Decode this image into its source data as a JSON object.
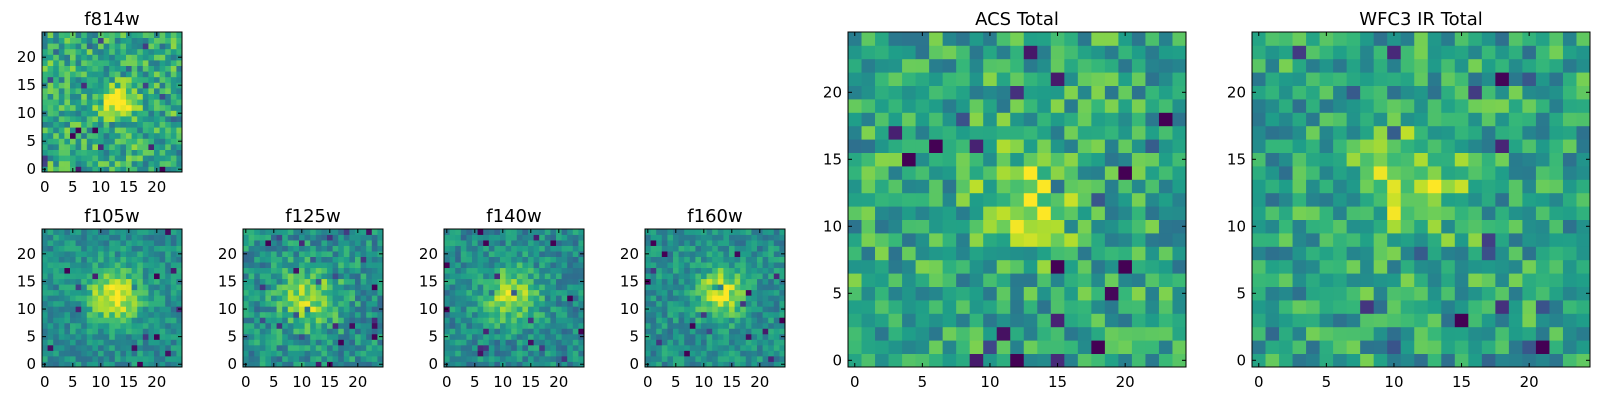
{
  "chart_data": [
    {
      "type": "heatmap",
      "title": "f814w",
      "xlabel": "",
      "ylabel": "",
      "grid_size": [
        25,
        25
      ],
      "xlim": [
        -0.5,
        24.5
      ],
      "ylim": [
        -0.5,
        24.5
      ],
      "xticks": [
        0,
        5,
        10,
        15,
        20
      ],
      "yticks": [
        0,
        5,
        10,
        15,
        20
      ],
      "colormap": "viridis",
      "source": {
        "center": [
          13,
          12
        ],
        "sigma": 1.8,
        "amplitude": 0.55,
        "base": 0.62,
        "noise": 0.22,
        "seed": 101
      }
    },
    {
      "type": "heatmap",
      "title": "f105w",
      "xlabel": "",
      "ylabel": "",
      "grid_size": [
        25,
        25
      ],
      "xlim": [
        -0.5,
        24.5
      ],
      "ylim": [
        -0.5,
        24.5
      ],
      "xticks": [
        0,
        5,
        10,
        15,
        20
      ],
      "yticks": [
        0,
        5,
        10,
        15,
        20
      ],
      "colormap": "viridis",
      "source": {
        "center": [
          12.5,
          12.5
        ],
        "sigma": 3.2,
        "amplitude": 0.5,
        "base": 0.5,
        "noise": 0.14,
        "seed": 202
      }
    },
    {
      "type": "heatmap",
      "title": "f125w",
      "xlabel": "",
      "ylabel": "",
      "grid_size": [
        25,
        25
      ],
      "xlim": [
        -0.5,
        24.5
      ],
      "ylim": [
        -0.5,
        24.5
      ],
      "xticks": [
        0,
        5,
        10,
        15,
        20
      ],
      "yticks": [
        0,
        5,
        10,
        15,
        20
      ],
      "colormap": "viridis",
      "source": {
        "center": [
          11.5,
          12
        ],
        "sigma": 3.8,
        "amplitude": 0.35,
        "base": 0.5,
        "noise": 0.18,
        "seed": 303
      }
    },
    {
      "type": "heatmap",
      "title": "f140w",
      "xlabel": "",
      "ylabel": "",
      "grid_size": [
        25,
        25
      ],
      "xlim": [
        -0.5,
        24.5
      ],
      "ylim": [
        -0.5,
        24.5
      ],
      "xticks": [
        0,
        5,
        10,
        15,
        20
      ],
      "yticks": [
        0,
        5,
        10,
        15,
        20
      ],
      "colormap": "viridis",
      "source": {
        "center": [
          11.5,
          12.5
        ],
        "sigma": 3.4,
        "amplitude": 0.4,
        "base": 0.48,
        "noise": 0.16,
        "seed": 404
      }
    },
    {
      "type": "heatmap",
      "title": "f160w",
      "xlabel": "",
      "ylabel": "",
      "grid_size": [
        25,
        25
      ],
      "xlim": [
        -0.5,
        24.5
      ],
      "ylim": [
        -0.5,
        24.5
      ],
      "xticks": [
        0,
        5,
        10,
        15,
        20
      ],
      "yticks": [
        0,
        5,
        10,
        15,
        20
      ],
      "colormap": "viridis",
      "source": {
        "center": [
          13,
          13
        ],
        "sigma": 3.0,
        "amplitude": 0.45,
        "base": 0.5,
        "noise": 0.15,
        "seed": 505
      }
    },
    {
      "type": "heatmap",
      "title": "ACS Total",
      "xlabel": "",
      "ylabel": "",
      "grid_size": [
        25,
        25
      ],
      "xlim": [
        -0.5,
        24.5
      ],
      "ylim": [
        -0.5,
        24.5
      ],
      "xticks": [
        0,
        5,
        10,
        15,
        20
      ],
      "yticks": [
        0,
        5,
        10,
        15,
        20
      ],
      "colormap": "viridis",
      "source": {
        "center": [
          13,
          12
        ],
        "sigma": 2.4,
        "amplitude": 0.35,
        "base": 0.6,
        "noise": 0.22,
        "seed": 606
      }
    },
    {
      "type": "heatmap",
      "title": "WFC3 IR Total",
      "xlabel": "",
      "ylabel": "",
      "grid_size": [
        25,
        25
      ],
      "xlim": [
        -0.5,
        24.5
      ],
      "ylim": [
        -0.5,
        24.5
      ],
      "xticks": [
        0,
        5,
        10,
        15,
        20
      ],
      "yticks": [
        0,
        5,
        10,
        15,
        20
      ],
      "colormap": "viridis",
      "source": {
        "center": [
          11.5,
          13
        ],
        "sigma": 2.8,
        "amplitude": 0.3,
        "base": 0.58,
        "noise": 0.22,
        "seed": 707
      }
    }
  ]
}
